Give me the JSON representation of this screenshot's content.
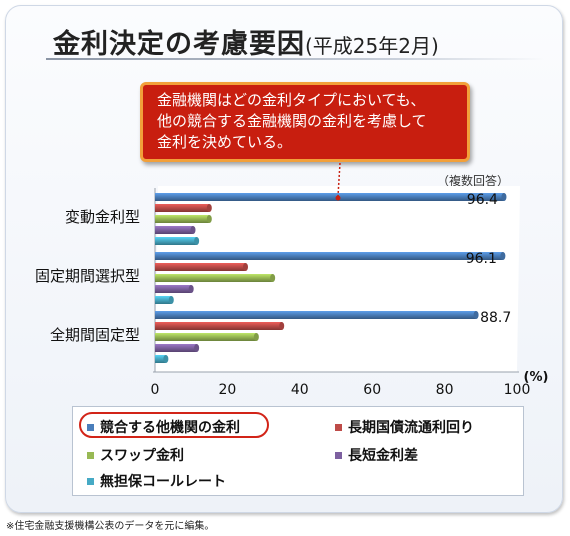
{
  "title": {
    "main": "金利決定の考慮要因",
    "sub": "(平成25年2月)"
  },
  "callout": {
    "lines": [
      "金融機関はどの金利タイプにおいても、",
      "他の競合する金融機関の金利を考慮して",
      "金利を決めている。"
    ]
  },
  "note": "（複数回答）",
  "footnote": "※住宅金融支援機構公表のデータを元に編集。",
  "colors": {
    "series": [
      "#4a7ebb",
      "#be4b48",
      "#98b954",
      "#7d60a0",
      "#46aac5"
    ],
    "callout_bg": "#c81e0f",
    "callout_border": "#f2a03a",
    "highlight": "#d22418"
  },
  "chart_data": {
    "type": "bar",
    "orientation": "horizontal",
    "style": "3d-cylinder",
    "categories": [
      "変動金利型",
      "固定期間選択型",
      "全期間固定型"
    ],
    "series": [
      {
        "name": "競合する他機関の金利",
        "values": [
          96.4,
          96.1,
          88.7
        ],
        "labels": [
          "96.4",
          "96.1",
          "88.7"
        ]
      },
      {
        "name": "長期国債流通利回り",
        "values": [
          15,
          25,
          35
        ]
      },
      {
        "name": "スワップ金利",
        "values": [
          15,
          32.5,
          28
        ]
      },
      {
        "name": "長短金利差",
        "values": [
          10.5,
          10,
          11.5
        ]
      },
      {
        "name": "無担保コールレート",
        "values": [
          11.5,
          4.5,
          3
        ]
      }
    ],
    "x_unit": "(%)",
    "xlim": [
      0,
      100
    ],
    "x_ticks": [
      "0",
      "20",
      "40",
      "60",
      "80",
      "100"
    ],
    "legend_position": "bottom",
    "highlighted_series": "競合する他機関の金利"
  }
}
